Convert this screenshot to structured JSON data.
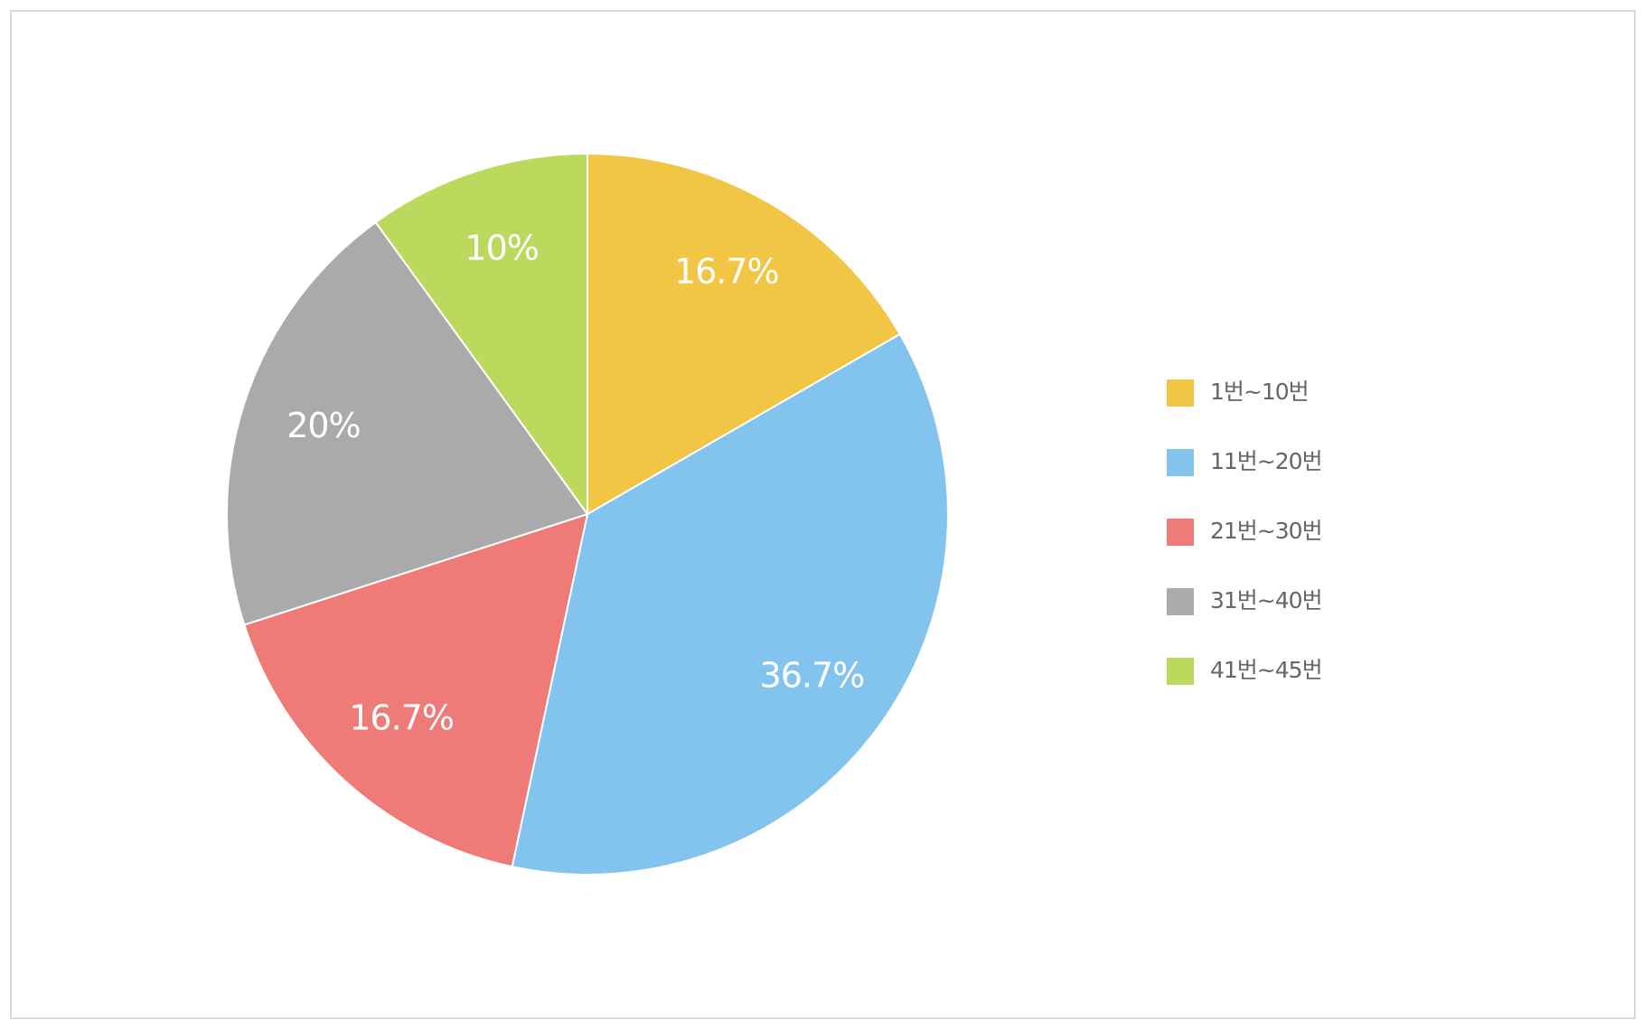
{
  "chart_data": {
    "type": "pie",
    "categories": [
      "1번~10번",
      "11번~20번",
      "21번~30번",
      "31번~40번",
      "41번~45번"
    ],
    "values": [
      16.7,
      36.7,
      16.7,
      20,
      10
    ],
    "value_labels": [
      "16.7%",
      "36.7%",
      "16.7%",
      "20%",
      "10%"
    ],
    "colors": [
      "#f1c644",
      "#82c4ee",
      "#ef7b78",
      "#aaaaaa",
      "#bbd95c"
    ],
    "legend": "right"
  }
}
